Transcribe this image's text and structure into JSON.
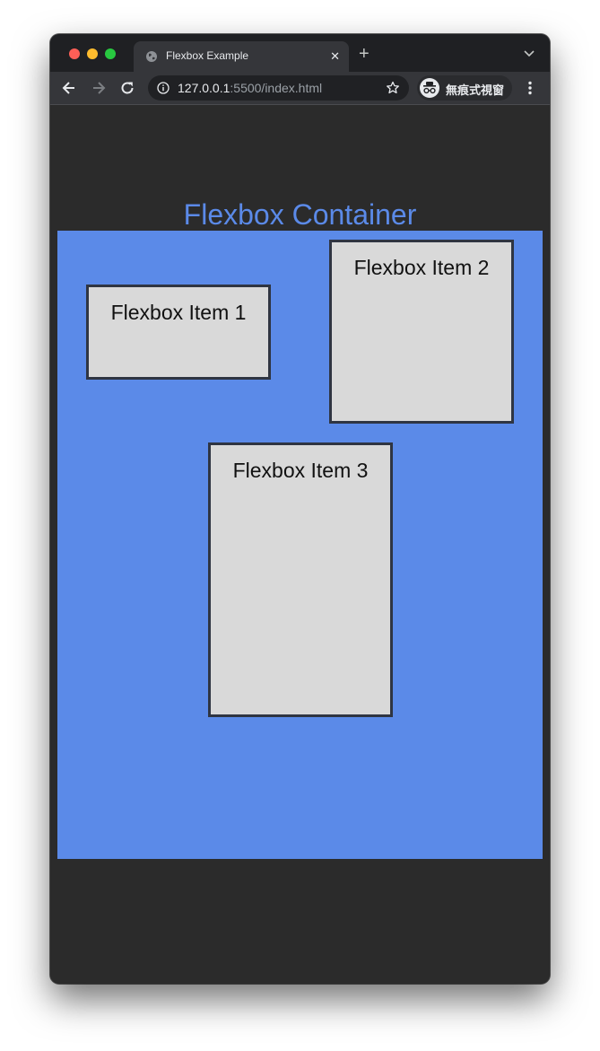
{
  "browser": {
    "tab": {
      "title": "Flexbox Example",
      "close_glyph": "✕"
    },
    "new_tab_glyph": "+",
    "address": {
      "host": "127.0.0.1",
      "path": ":5500/index.html"
    },
    "incognito_label": "無痕式視窗",
    "icons": {
      "favicon": "globe-icon",
      "back": "back-arrow-icon",
      "forward": "forward-arrow-icon",
      "reload": "reload-icon",
      "site_info": "info-icon",
      "bookmark": "star-icon",
      "incognito": "incognito-icon",
      "menu": "kebab-menu-icon",
      "tab_list": "chevron-down-icon"
    }
  },
  "page": {
    "heading": "Flexbox Container",
    "items": [
      {
        "label": "Flexbox Item 1"
      },
      {
        "label": "Flexbox Item 2"
      },
      {
        "label": "Flexbox Item 3"
      }
    ]
  },
  "colors": {
    "page_background": "#2b2b2b",
    "accent_blue": "#5b8ae8",
    "item_background": "#d9d9d9",
    "item_border": "#2f3542"
  }
}
